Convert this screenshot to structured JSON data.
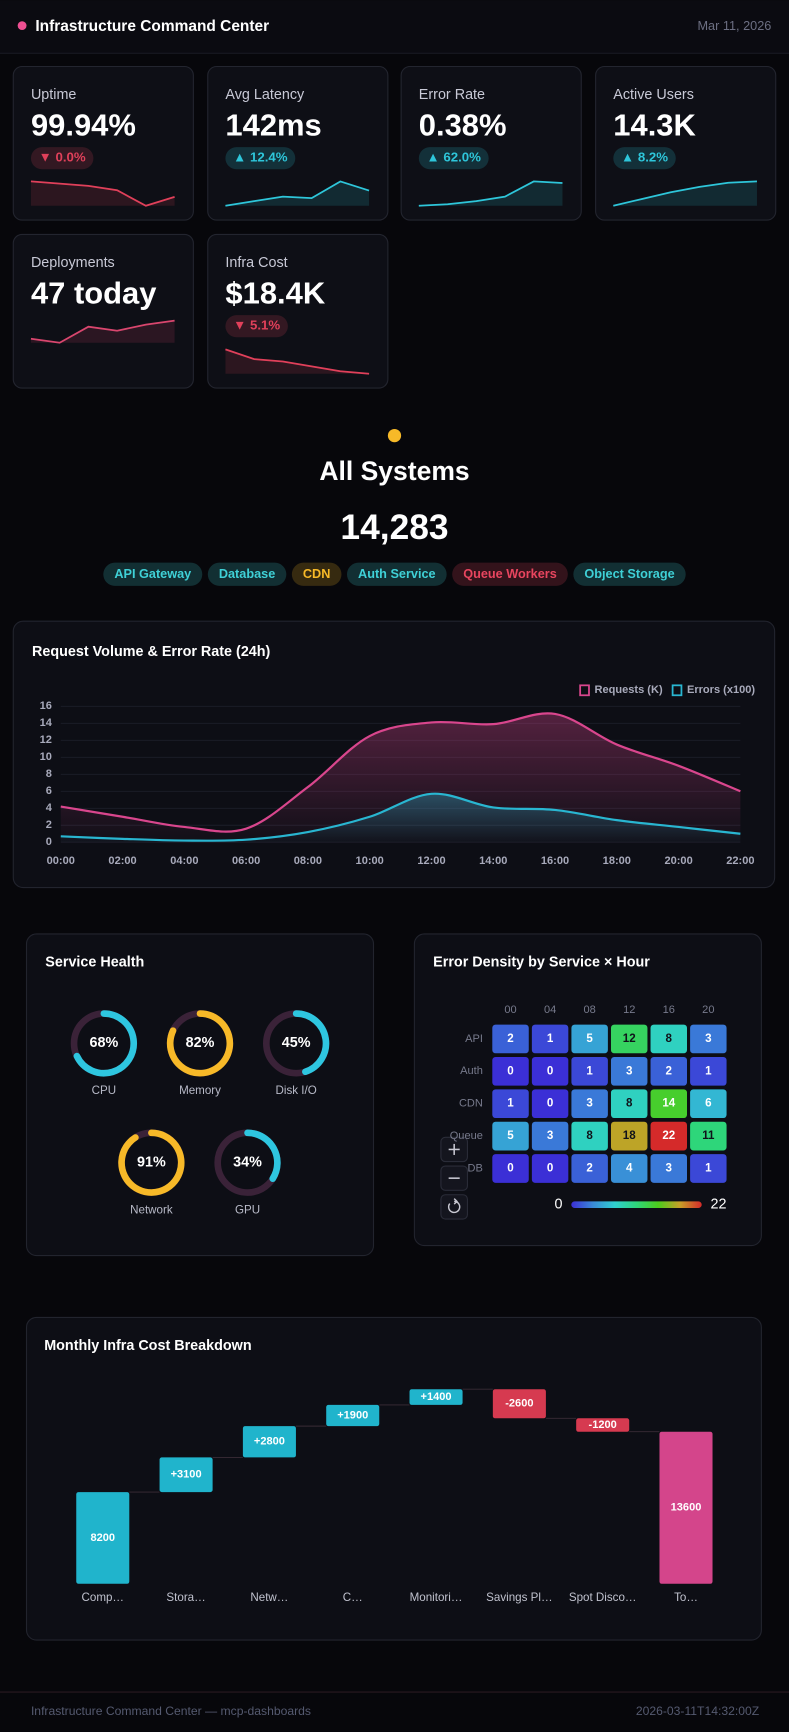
{
  "header": {
    "title": "Infrastructure Command Center",
    "date": "Mar 11, 2026"
  },
  "kpis": [
    {
      "label": "Uptime",
      "value": "99.94%",
      "change": "▼ 0.0%",
      "color": "#e0405a",
      "spark": [
        6,
        5.5,
        5,
        4,
        0.5,
        2.5
      ]
    },
    {
      "label": "Avg Latency",
      "value": "142ms",
      "change": "▲ 12.4%",
      "color": "#2ec6da",
      "spark": [
        0,
        1.5,
        3,
        2.5,
        8,
        5
      ]
    },
    {
      "label": "Error Rate",
      "value": "0.38%",
      "change": "▲ 62.0%",
      "color": "#2ec6da",
      "spark": [
        0,
        0.5,
        1.5,
        3,
        8,
        7.5
      ]
    },
    {
      "label": "Active Users",
      "value": "14.3K",
      "change": "▲ 8.2%",
      "color": "#2ec6da",
      "spark": [
        0,
        2.5,
        5,
        7,
        8.5,
        9
      ]
    },
    {
      "label": "Deployments",
      "value": "47 today",
      "color": "#d9466e",
      "spark": [
        1,
        0,
        4,
        3,
        4.5,
        5.5
      ]
    },
    {
      "label": "Infra Cost",
      "value": "$18.4K",
      "change": "▼ 5.1%",
      "color": "#e0405a",
      "spark": [
        6,
        4,
        3.5,
        2.5,
        1.5,
        1
      ]
    }
  ],
  "status": {
    "title": "All Systems",
    "value": "14,283",
    "color": "#f7b928",
    "services": [
      {
        "name": "API Gateway",
        "color": "#3fd0d6"
      },
      {
        "name": "Database",
        "color": "#3fd0d6"
      },
      {
        "name": "CDN",
        "color": "#f7b928"
      },
      {
        "name": "Auth Service",
        "color": "#3fd0d6"
      },
      {
        "name": "Queue Workers",
        "color": "#e8455f"
      },
      {
        "name": "Object Storage",
        "color": "#3fd0d6"
      }
    ]
  },
  "chart_data": [
    {
      "type": "line",
      "title": "Request Volume & Error Rate (24h)",
      "categories": [
        "00:00",
        "02:00",
        "04:00",
        "06:00",
        "08:00",
        "10:00",
        "12:00",
        "14:00",
        "16:00",
        "18:00",
        "20:00",
        "22:00"
      ],
      "series": [
        {
          "name": "Requests (K)",
          "color": "#d9468d",
          "values": [
            4.2,
            3,
            1.8,
            1.6,
            6.5,
            12.5,
            14.1,
            13.9,
            15.1,
            11.5,
            9,
            6
          ]
        },
        {
          "name": "Errors (x100)",
          "color": "#29b6d1",
          "values": [
            0.7,
            0.4,
            0.2,
            0.3,
            1.2,
            3,
            5.7,
            4.1,
            3.8,
            2.6,
            1.8,
            1
          ]
        }
      ],
      "ylim": [
        0,
        16
      ],
      "yticks": [
        0,
        2,
        4,
        6,
        8,
        10,
        12,
        14,
        16
      ],
      "grid": true,
      "legend": "top-right"
    },
    {
      "type": "gauge",
      "title": "Service Health",
      "categories": [
        "CPU",
        "Memory",
        "Disk I/O",
        "Network",
        "GPU"
      ],
      "values": [
        68,
        82,
        45,
        91,
        34
      ],
      "value_labels": [
        "68%",
        "82%",
        "45%",
        "91%",
        "34%"
      ],
      "colors": [
        "#2ec6e0",
        "#f7b928",
        "#2ec6e0",
        "#f7b928",
        "#2ec6e0"
      ],
      "ylim": [
        0,
        100
      ]
    },
    {
      "type": "heatmap",
      "title": "Error Density by Service × Hour",
      "x_categories": [
        "00",
        "04",
        "08",
        "12",
        "16",
        "20"
      ],
      "y_categories": [
        "API",
        "Auth",
        "CDN",
        "Queue",
        "DB"
      ],
      "values": [
        [
          2,
          1,
          5,
          12,
          8,
          3
        ],
        [
          0,
          0,
          1,
          3,
          2,
          1
        ],
        [
          1,
          0,
          3,
          8,
          14,
          6
        ],
        [
          5,
          3,
          8,
          18,
          22,
          11
        ],
        [
          0,
          0,
          2,
          4,
          3,
          1
        ]
      ],
      "vlim": [
        0,
        22
      ],
      "colorscale": [
        "#3b2fd6",
        "#3a8ad8",
        "#2fd0d0",
        "#2ed67a",
        "#4ccc1c",
        "#c8a028",
        "#d52a2a"
      ]
    },
    {
      "type": "waterfall",
      "title": "Monthly Infra Cost Breakdown",
      "categories": [
        "Comp…",
        "Stora…",
        "Netw…",
        "C…",
        "Monitori…",
        "Savings Pl…",
        "Spot Disco…",
        "To…"
      ],
      "values": [
        8200,
        3100,
        2800,
        1900,
        1400,
        -2600,
        -1200,
        13600
      ],
      "value_labels": [
        "8200",
        "+3100",
        "+2800",
        "+1900",
        "+1400",
        "-2600",
        "-1200",
        "13600"
      ],
      "totals": [
        false,
        false,
        false,
        false,
        false,
        false,
        false,
        true
      ],
      "colors": {
        "total": "#d4458b",
        "increase": "#20b4cc",
        "decrease": "#d63a50"
      }
    }
  ],
  "footer": {
    "left": "Infrastructure Command Center — mcp-dashboards",
    "right": "2026-03-11T14:32:00Z"
  }
}
